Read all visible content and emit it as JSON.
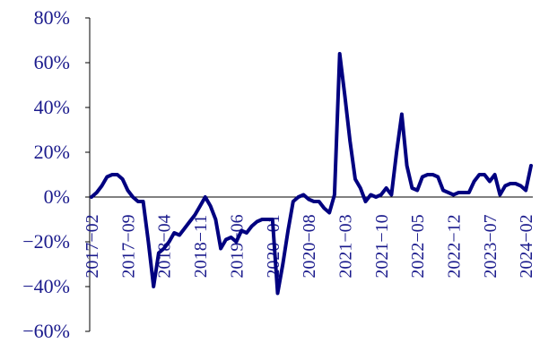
{
  "chart_data": {
    "type": "line",
    "title": "",
    "xlabel": "",
    "ylabel": "",
    "ylim": [
      -60,
      80
    ],
    "y_ticks": [
      -60,
      -40,
      -20,
      0,
      20,
      40,
      60,
      80
    ],
    "y_tick_labels": [
      "−60%",
      "−40%",
      "−20%",
      "0%",
      "20%",
      "40%",
      "60%",
      "80%"
    ],
    "x_tick_labels": [
      "2017−02",
      "2017−09",
      "2018−04",
      "2018−11",
      "2019−06",
      "2020−01",
      "2020−08",
      "2021−03",
      "2021−10",
      "2022−05",
      "2022−12",
      "2023−07",
      "2024−02"
    ],
    "grid": false,
    "legend": "none",
    "series": [
      {
        "color": "#000080",
        "x": [
          "2017-02",
          "2017-03",
          "2017-04",
          "2017-05",
          "2017-06",
          "2017-07",
          "2017-08",
          "2017-09",
          "2017-10",
          "2017-11",
          "2017-12",
          "2018-01",
          "2018-02",
          "2018-03",
          "2018-04",
          "2018-05",
          "2018-06",
          "2018-07",
          "2018-08",
          "2018-09",
          "2018-10",
          "2018-11",
          "2018-12",
          "2019-01",
          "2019-02",
          "2019-03",
          "2019-04",
          "2019-05",
          "2019-06",
          "2019-07",
          "2019-08",
          "2019-09",
          "2019-10",
          "2019-11",
          "2019-12",
          "2020-01",
          "2020-02",
          "2020-03",
          "2020-04",
          "2020-05",
          "2020-06",
          "2020-07",
          "2020-08",
          "2020-09",
          "2020-10",
          "2020-11",
          "2020-12",
          "2021-01",
          "2021-02",
          "2021-03",
          "2021-04",
          "2021-05",
          "2021-06",
          "2021-07",
          "2021-08",
          "2021-09",
          "2021-10",
          "2021-11",
          "2021-12",
          "2022-01",
          "2022-02",
          "2022-03",
          "2022-04",
          "2022-05",
          "2022-06",
          "2022-07",
          "2022-08",
          "2022-09",
          "2022-10",
          "2022-11",
          "2022-12",
          "2023-01",
          "2023-02",
          "2023-03",
          "2023-04",
          "2023-05",
          "2023-06",
          "2023-07",
          "2023-08",
          "2023-09",
          "2023-10",
          "2023-11",
          "2023-12",
          "2024-01",
          "2024-02",
          "2024-03"
        ],
        "values": [
          0,
          2,
          5,
          9,
          10,
          10,
          8,
          3,
          0,
          -2,
          -2,
          -20,
          -40,
          -25,
          -23,
          -20,
          -16,
          -17,
          -14,
          -11,
          -8,
          -4,
          0,
          -4,
          -10,
          -23,
          -19,
          -18,
          -20,
          -15,
          -16,
          -13,
          -11,
          -10,
          -10,
          -10,
          -43,
          -30,
          -15,
          -2,
          0,
          1,
          -1,
          -2,
          -2,
          -5,
          -7,
          1,
          64,
          45,
          25,
          8,
          4,
          -2,
          1,
          0,
          1,
          4,
          1,
          20,
          37,
          14,
          4,
          3,
          9,
          10,
          10,
          9,
          3,
          2,
          1,
          2,
          2,
          2,
          7,
          10,
          10,
          7,
          10,
          1,
          5,
          6,
          6,
          5,
          3,
          14
        ]
      }
    ]
  }
}
